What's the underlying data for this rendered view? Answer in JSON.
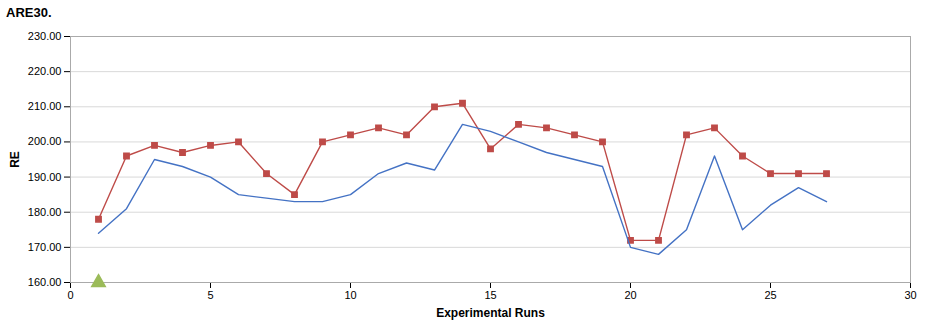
{
  "chart_data": {
    "type": "line",
    "title": "ARE30.",
    "xlabel": "Experimental Runs",
    "ylabel": "RE",
    "x": [
      1,
      2,
      3,
      4,
      5,
      6,
      7,
      8,
      9,
      10,
      11,
      12,
      13,
      14,
      15,
      16,
      17,
      18,
      19,
      20,
      21,
      22,
      23,
      24,
      25,
      26,
      27
    ],
    "series": [
      {
        "type": "line",
        "color": "#BE4B48",
        "marker": "square",
        "line_style": "solid",
        "values": [
          178,
          196,
          199,
          197,
          199,
          200,
          191,
          185,
          200,
          202,
          204,
          202,
          210,
          211,
          198,
          205,
          204,
          202,
          200,
          172,
          172,
          202,
          204,
          196,
          191,
          191,
          191
        ]
      },
      {
        "type": "line",
        "color": "#4472C4",
        "marker": "none",
        "line_style": "solid",
        "values": [
          174,
          181,
          195,
          193,
          190,
          185,
          184,
          183,
          183,
          185,
          191,
          194,
          192,
          205,
          203,
          200,
          197,
          195,
          193,
          170,
          168,
          175,
          196,
          175,
          182,
          187,
          183
        ]
      },
      {
        "type": "scatter",
        "color": "#9BBB59",
        "marker": "triangle",
        "values": [
          160,
          null,
          null,
          null,
          null,
          null,
          null,
          null,
          null,
          null,
          null,
          null,
          null,
          null,
          null,
          null,
          null,
          null,
          null,
          null,
          null,
          null,
          null,
          null,
          null,
          null,
          null
        ]
      }
    ],
    "xlim": [
      0,
      30
    ],
    "xticks": [
      0,
      5,
      10,
      15,
      20,
      25,
      30
    ],
    "ylim": [
      160,
      230
    ],
    "yticks": [
      {
        "value": 160,
        "label": "160.00"
      },
      {
        "value": 170,
        "label": "170.00"
      },
      {
        "value": 180,
        "label": "180.00"
      },
      {
        "value": 190,
        "label": "190.00"
      },
      {
        "value": 200,
        "label": "200.00"
      },
      {
        "value": 210,
        "label": "210.00"
      },
      {
        "value": 220,
        "label": "220.00"
      },
      {
        "value": 230,
        "label": "230.00"
      }
    ],
    "grid": "y"
  }
}
